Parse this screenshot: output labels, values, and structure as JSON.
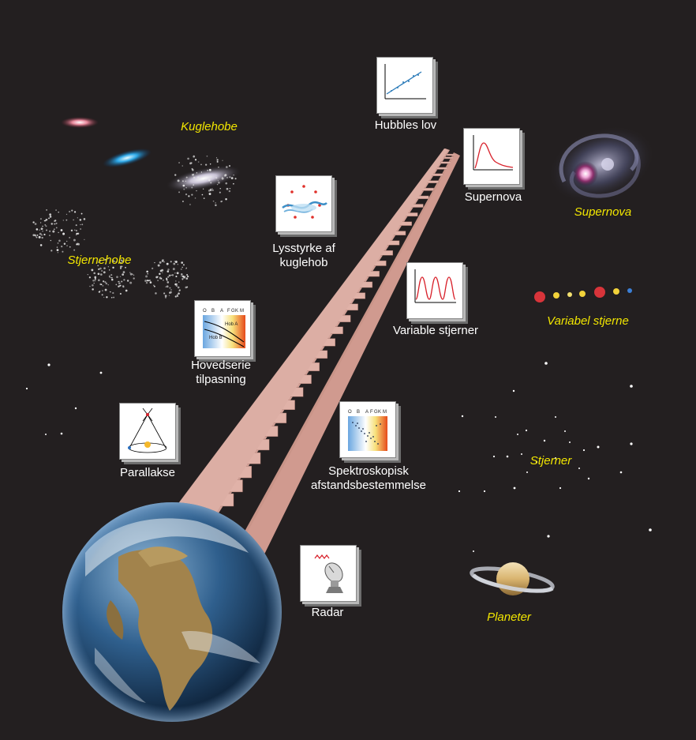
{
  "methods": [
    {
      "id": "hubble",
      "lines": [
        "Hubbles lov"
      ]
    },
    {
      "id": "supernova",
      "lines": [
        "Supernova"
      ]
    },
    {
      "id": "globular",
      "lines": [
        "Lysstyrke af",
        "kuglehob"
      ]
    },
    {
      "id": "variable",
      "lines": [
        "Variable stjerner"
      ]
    },
    {
      "id": "mainseq",
      "lines": [
        "Hovedserie",
        "tilpasning"
      ]
    },
    {
      "id": "parallax",
      "lines": [
        "Parallakse"
      ]
    },
    {
      "id": "spectro",
      "lines": [
        "Spektroskopisk",
        "afstandsbestemmelse"
      ]
    },
    {
      "id": "radar",
      "lines": [
        "Radar"
      ]
    }
  ],
  "objects": [
    {
      "id": "globular-clusters",
      "label": "Kuglehobe"
    },
    {
      "id": "supernova-obj",
      "label": "Supernova"
    },
    {
      "id": "star-clusters",
      "label": "Stjernehobe"
    },
    {
      "id": "variable-star",
      "label": "Variabel stjerne"
    },
    {
      "id": "stars",
      "label": "Stjerner"
    },
    {
      "id": "planets",
      "label": "Planeter"
    }
  ],
  "spectral_classes": [
    "O",
    "B",
    "A",
    "F",
    "G",
    "K",
    "M"
  ],
  "mainseq_labels": [
    "Hob A",
    "Hob B"
  ],
  "colors": {
    "background": "#231f20",
    "method_label": "#ffffff",
    "object_label": "#f2e600",
    "ladder": "#d8a9a0"
  }
}
